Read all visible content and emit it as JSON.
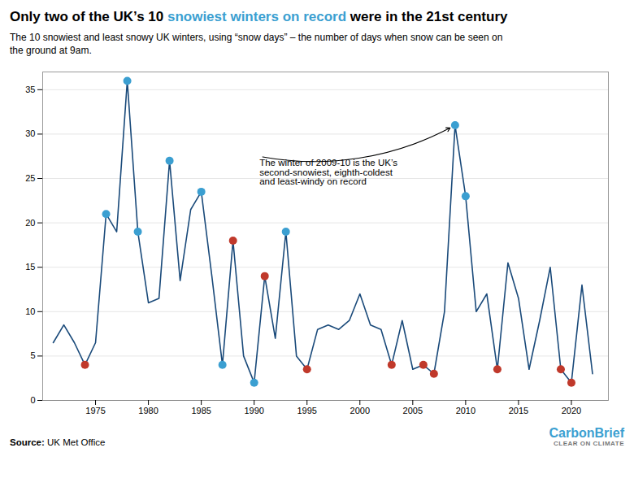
{
  "chart_data": {
    "type": "line",
    "title": "Only two of the UK’s 10 snowiest winters on record were in the 21st century",
    "title_highlight": {
      "text": "snowiest winters on record",
      "color": "#3b9fd1"
    },
    "subtitle": "The 10 snowiest and least snowy UK winters, using “snow days” – the number of days when snow can be seen on\nthe ground at 9am.",
    "x": [
      1971,
      1972,
      1973,
      1974,
      1975,
      1976,
      1977,
      1978,
      1979,
      1980,
      1981,
      1982,
      1983,
      1984,
      1985,
      1986,
      1987,
      1988,
      1989,
      1990,
      1991,
      1992,
      1993,
      1994,
      1995,
      1996,
      1997,
      1998,
      1999,
      2000,
      2001,
      2002,
      2003,
      2004,
      2005,
      2006,
      2007,
      2008,
      2009,
      2010,
      2011,
      2012,
      2013,
      2014,
      2015,
      2016,
      2017,
      2018,
      2019,
      2020,
      2021,
      2022
    ],
    "values": [
      6.5,
      8.5,
      6.5,
      4.0,
      6.5,
      21.0,
      19.0,
      36.0,
      19.0,
      11.0,
      11.5,
      27.0,
      13.5,
      21.5,
      23.5,
      14.0,
      4.0,
      18.0,
      5.0,
      2.0,
      14.0,
      7.0,
      19.0,
      5.0,
      3.5,
      8.0,
      8.5,
      8.0,
      9.0,
      12.0,
      8.5,
      8.0,
      4.0,
      9.0,
      3.5,
      4.0,
      3.0,
      10.0,
      31.0,
      23.0,
      10.0,
      12.0,
      3.5,
      15.5,
      11.5,
      3.5,
      9.0,
      15.0,
      3.5,
      2.0,
      13.0,
      3.0
    ],
    "color": "#1a4a7a",
    "highlights": [
      {
        "x": [
          1976,
          1978,
          1979,
          1982,
          1985,
          1987,
          1990,
          1993,
          2009,
          2010
        ],
        "color": "#3b9fd1"
      },
      {
        "x": [
          1974,
          1988,
          1991,
          1995,
          2003,
          2006,
          2007,
          2013,
          2019,
          2020
        ],
        "color": "#c0392b"
      }
    ],
    "annotation": {
      "text": "The winter of 2009-10 is the UK’s\nsecond-snowiest, eighth-coldest\nand least-windy on record",
      "x": 1990.5,
      "y": 27.5,
      "target_x": 2009,
      "target_y": 31.0
    },
    "xlim": [
      1970,
      2023.5
    ],
    "ylim": [
      0,
      37
    ],
    "xticks": [
      1975,
      1980,
      1985,
      1990,
      1995,
      2000,
      2005,
      2010,
      2015,
      2020
    ],
    "yticks": [
      0,
      5,
      10,
      15,
      20,
      25,
      30,
      35
    ],
    "grid": true,
    "source": "Source: UK Met Office",
    "logo": "CarbonBrief",
    "logo_sub": "CLEAR ON CLIMATE",
    "logo_color": "#3b9fd1"
  }
}
